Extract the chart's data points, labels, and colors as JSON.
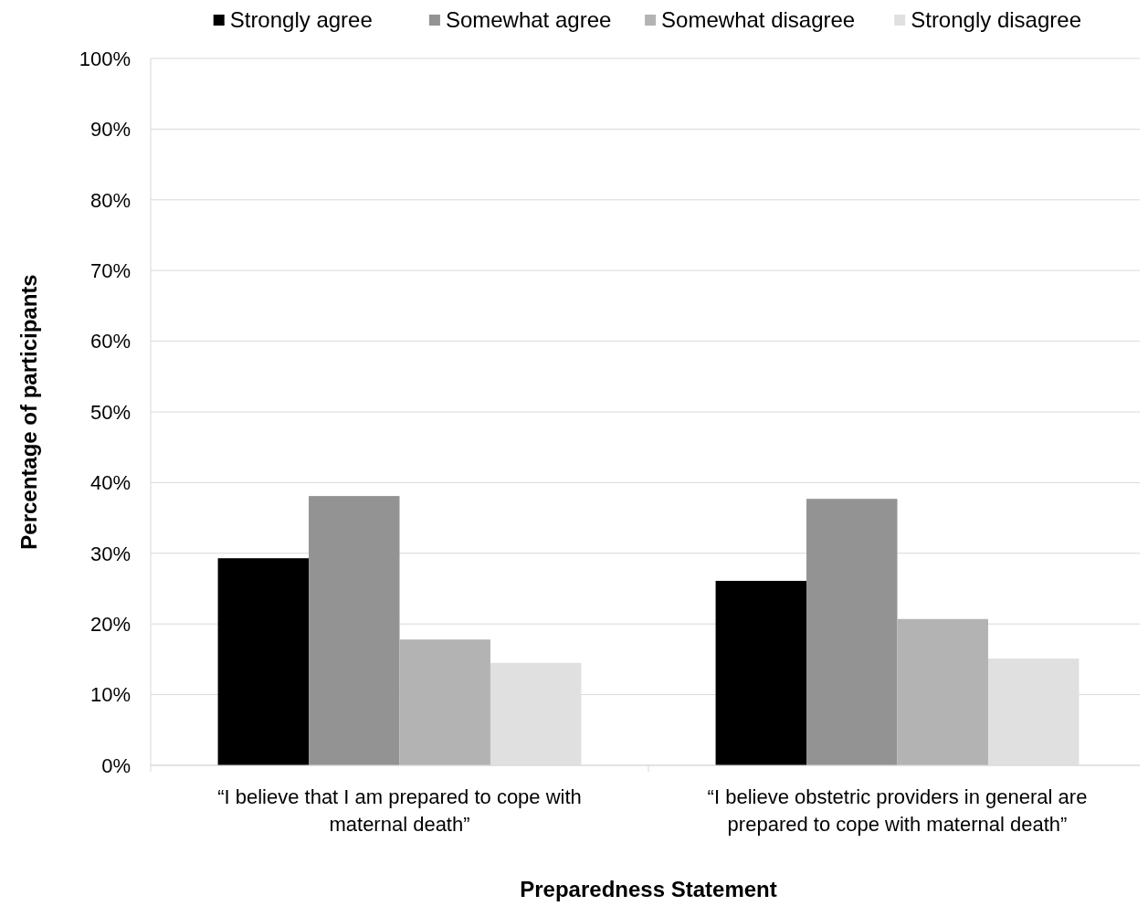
{
  "chart_data": {
    "type": "bar",
    "xlabel": "Preparedness Statement",
    "ylabel": "Percentage of participants",
    "categories": [
      "“I believe that I am prepared to cope with maternal death”",
      "“I believe obstetric providers in general are prepared to cope with maternal death”"
    ],
    "series": [
      {
        "name": "Strongly agree",
        "color": "#000000",
        "values": [
          29.3,
          26.1
        ]
      },
      {
        "name": "Somewhat agree",
        "color": "#939393",
        "values": [
          38.1,
          37.7
        ]
      },
      {
        "name": "Somewhat disagree",
        "color": "#b3b3b3",
        "values": [
          17.8,
          20.7
        ]
      },
      {
        "name": "Strongly disagree",
        "color": "#e0e0e0",
        "values": [
          14.5,
          15.1
        ]
      }
    ],
    "ylim": [
      0,
      100
    ],
    "yticks": [
      {
        "value": 0,
        "label": "0%"
      },
      {
        "value": 10,
        "label": "10%"
      },
      {
        "value": 20,
        "label": "20%"
      },
      {
        "value": 30,
        "label": "30%"
      },
      {
        "value": 40,
        "label": "40%"
      },
      {
        "value": 50,
        "label": "50%"
      },
      {
        "value": 60,
        "label": "60%"
      },
      {
        "value": 70,
        "label": "70%"
      },
      {
        "value": 80,
        "label": "80%"
      },
      {
        "value": 90,
        "label": "90%"
      },
      {
        "value": 100,
        "label": "100%"
      }
    ],
    "grid": "y",
    "legend": "top"
  }
}
